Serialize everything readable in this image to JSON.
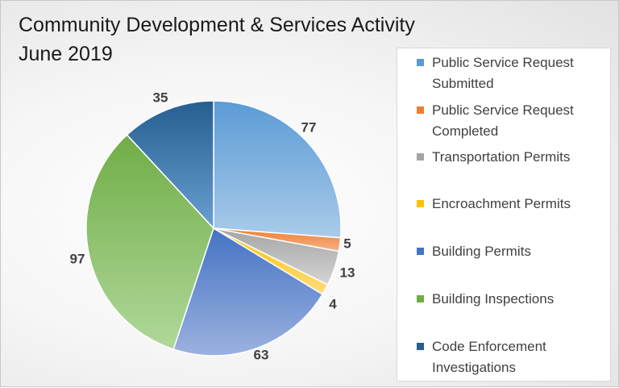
{
  "colors": {
    "background": "#f2f2f2"
  },
  "chart_data": {
    "type": "pie",
    "title": "Community Development & Services Activity",
    "subtitle": "June 2019",
    "legend_position": "right",
    "categories": [
      "Public Service Request Submitted",
      "Public Service Request Completed",
      "Transportation Permits",
      "Encroachment Permits",
      "Building Permits",
      "Building Inspections",
      "Code Enforcement Investigations"
    ],
    "values": [
      77,
      5,
      13,
      4,
      63,
      97,
      35
    ],
    "colors": [
      "#5b9bd5",
      "#ed7d31",
      "#a5a5a5",
      "#ffc000",
      "#4472c4",
      "#70ad47",
      "#255e91"
    ],
    "colors_light": [
      "#a9cbea",
      "#f5b48a",
      "#d4d4d4",
      "#ffdd80",
      "#9cb2e0",
      "#b0d89a",
      "#6a9fd0"
    ]
  }
}
